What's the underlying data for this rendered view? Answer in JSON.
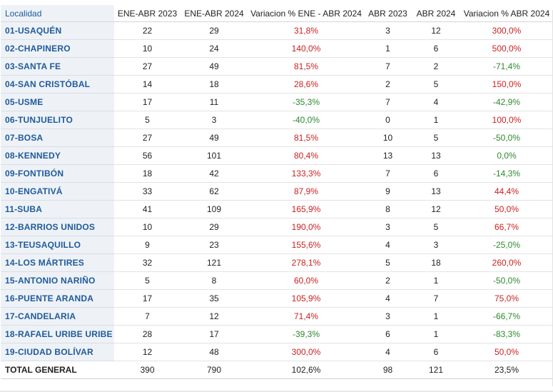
{
  "table": {
    "headers": {
      "localidad": "Localidad",
      "ene_abr_2023": "ENE-ABR 2023",
      "ene_abr_2024": "ENE-ABR 2024",
      "var_ene_abr": "Variacion % ENE - ABR 2024",
      "abr_2023": "ABR 2023",
      "abr_2024": "ABR 2024",
      "var_abr": "Variacion % ABR 2024"
    },
    "rows": [
      {
        "localidad": "01-USAQUÉN",
        "ene_abr_2023": "22",
        "ene_abr_2024": "29",
        "var_ene_abr": "31,8%",
        "var_ene_abr_sign": "pos",
        "abr_2023": "3",
        "abr_2024": "12",
        "var_abr": "300,0%",
        "var_abr_sign": "pos"
      },
      {
        "localidad": "02-CHAPINERO",
        "ene_abr_2023": "10",
        "ene_abr_2024": "24",
        "var_ene_abr": "140,0%",
        "var_ene_abr_sign": "pos",
        "abr_2023": "1",
        "abr_2024": "6",
        "var_abr": "500,0%",
        "var_abr_sign": "pos"
      },
      {
        "localidad": "03-SANTA FE",
        "ene_abr_2023": "27",
        "ene_abr_2024": "49",
        "var_ene_abr": "81,5%",
        "var_ene_abr_sign": "pos",
        "abr_2023": "7",
        "abr_2024": "2",
        "var_abr": "-71,4%",
        "var_abr_sign": "neg"
      },
      {
        "localidad": "04-SAN CRISTÓBAL",
        "ene_abr_2023": "14",
        "ene_abr_2024": "18",
        "var_ene_abr": "28,6%",
        "var_ene_abr_sign": "pos",
        "abr_2023": "2",
        "abr_2024": "5",
        "var_abr": "150,0%",
        "var_abr_sign": "pos"
      },
      {
        "localidad": "05-USME",
        "ene_abr_2023": "17",
        "ene_abr_2024": "11",
        "var_ene_abr": "-35,3%",
        "var_ene_abr_sign": "neg",
        "abr_2023": "7",
        "abr_2024": "4",
        "var_abr": "-42,9%",
        "var_abr_sign": "neg"
      },
      {
        "localidad": "06-TUNJUELITO",
        "ene_abr_2023": "5",
        "ene_abr_2024": "3",
        "var_ene_abr": "-40,0%",
        "var_ene_abr_sign": "neg",
        "abr_2023": "0",
        "abr_2024": "1",
        "var_abr": "100,0%",
        "var_abr_sign": "pos"
      },
      {
        "localidad": "07-BOSA",
        "ene_abr_2023": "27",
        "ene_abr_2024": "49",
        "var_ene_abr": "81,5%",
        "var_ene_abr_sign": "pos",
        "abr_2023": "10",
        "abr_2024": "5",
        "var_abr": "-50,0%",
        "var_abr_sign": "neg"
      },
      {
        "localidad": "08-KENNEDY",
        "ene_abr_2023": "56",
        "ene_abr_2024": "101",
        "var_ene_abr": "80,4%",
        "var_ene_abr_sign": "pos",
        "abr_2023": "13",
        "abr_2024": "13",
        "var_abr": "0,0%",
        "var_abr_sign": "neg"
      },
      {
        "localidad": "09-FONTIBÓN",
        "ene_abr_2023": "18",
        "ene_abr_2024": "42",
        "var_ene_abr": "133,3%",
        "var_ene_abr_sign": "pos",
        "abr_2023": "7",
        "abr_2024": "6",
        "var_abr": "-14,3%",
        "var_abr_sign": "neg"
      },
      {
        "localidad": "10-ENGATIVÁ",
        "ene_abr_2023": "33",
        "ene_abr_2024": "62",
        "var_ene_abr": "87,9%",
        "var_ene_abr_sign": "pos",
        "abr_2023": "9",
        "abr_2024": "13",
        "var_abr": "44,4%",
        "var_abr_sign": "pos"
      },
      {
        "localidad": "11-SUBA",
        "ene_abr_2023": "41",
        "ene_abr_2024": "109",
        "var_ene_abr": "165,9%",
        "var_ene_abr_sign": "pos",
        "abr_2023": "8",
        "abr_2024": "12",
        "var_abr": "50,0%",
        "var_abr_sign": "pos"
      },
      {
        "localidad": "12-BARRIOS UNIDOS",
        "ene_abr_2023": "10",
        "ene_abr_2024": "29",
        "var_ene_abr": "190,0%",
        "var_ene_abr_sign": "pos",
        "abr_2023": "3",
        "abr_2024": "5",
        "var_abr": "66,7%",
        "var_abr_sign": "pos"
      },
      {
        "localidad": "13-TEUSAQUILLO",
        "ene_abr_2023": "9",
        "ene_abr_2024": "23",
        "var_ene_abr": "155,6%",
        "var_ene_abr_sign": "pos",
        "abr_2023": "4",
        "abr_2024": "3",
        "var_abr": "-25,0%",
        "var_abr_sign": "neg"
      },
      {
        "localidad": "14-LOS MÁRTIRES",
        "ene_abr_2023": "32",
        "ene_abr_2024": "121",
        "var_ene_abr": "278,1%",
        "var_ene_abr_sign": "pos",
        "abr_2023": "5",
        "abr_2024": "18",
        "var_abr": "260,0%",
        "var_abr_sign": "pos"
      },
      {
        "localidad": "15-ANTONIO NARIÑO",
        "ene_abr_2023": "5",
        "ene_abr_2024": "8",
        "var_ene_abr": "60,0%",
        "var_ene_abr_sign": "pos",
        "abr_2023": "2",
        "abr_2024": "1",
        "var_abr": "-50,0%",
        "var_abr_sign": "neg"
      },
      {
        "localidad": "16-PUENTE ARANDA",
        "ene_abr_2023": "17",
        "ene_abr_2024": "35",
        "var_ene_abr": "105,9%",
        "var_ene_abr_sign": "pos",
        "abr_2023": "4",
        "abr_2024": "7",
        "var_abr": "75,0%",
        "var_abr_sign": "pos"
      },
      {
        "localidad": "17-CANDELARIA",
        "ene_abr_2023": "7",
        "ene_abr_2024": "12",
        "var_ene_abr": "71,4%",
        "var_ene_abr_sign": "pos",
        "abr_2023": "3",
        "abr_2024": "1",
        "var_abr": "-66,7%",
        "var_abr_sign": "neg"
      },
      {
        "localidad": "18-RAFAEL URIBE URIBE",
        "ene_abr_2023": "28",
        "ene_abr_2024": "17",
        "var_ene_abr": "-39,3%",
        "var_ene_abr_sign": "neg",
        "abr_2023": "6",
        "abr_2024": "1",
        "var_abr": "-83,3%",
        "var_abr_sign": "neg"
      },
      {
        "localidad": "19-CIUDAD BOLÍVAR",
        "ene_abr_2023": "12",
        "ene_abr_2024": "48",
        "var_ene_abr": "300,0%",
        "var_ene_abr_sign": "pos",
        "abr_2023": "4",
        "abr_2024": "6",
        "var_abr": "50,0%",
        "var_abr_sign": "pos"
      }
    ],
    "total": {
      "localidad": "TOTAL GENERAL",
      "ene_abr_2023": "390",
      "ene_abr_2024": "790",
      "var_ene_abr": "102,6%",
      "abr_2023": "98",
      "abr_2024": "121",
      "var_abr": "23,5%"
    }
  },
  "colors": {
    "positive_variation": "#cc1f1f",
    "negative_variation": "#2d8a2d",
    "locality_text": "#1f5a9a",
    "locality_bg": "#eef2f7"
  }
}
